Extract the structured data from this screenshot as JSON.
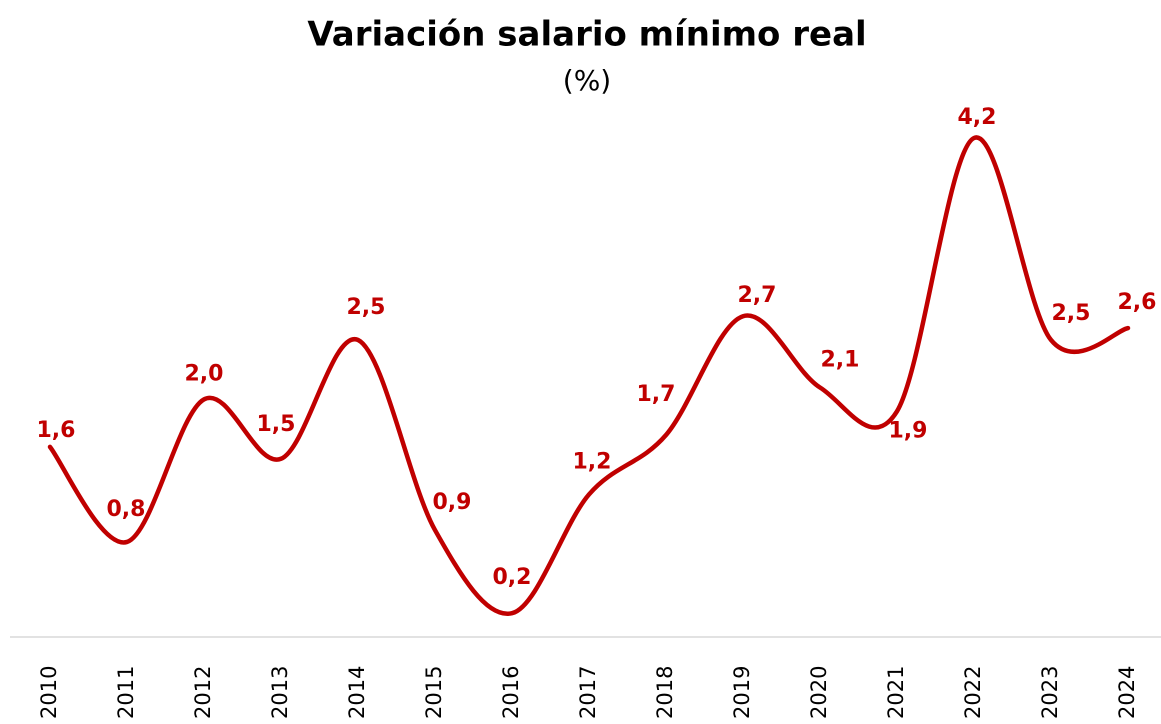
{
  "chart_data": {
    "type": "line",
    "title": "Variación salario mínimo real",
    "subtitle": "(%)",
    "categories": [
      "2010",
      "2011",
      "2012",
      "2013",
      "2014",
      "2015",
      "2016",
      "2017",
      "2018",
      "2019",
      "2020",
      "2021",
      "2022",
      "2023",
      "2024"
    ],
    "values": [
      1.6,
      0.8,
      2.0,
      1.5,
      2.5,
      0.9,
      0.2,
      1.2,
      1.7,
      2.7,
      2.1,
      1.9,
      4.2,
      2.5,
      2.6
    ],
    "value_labels": [
      "1,6",
      "0,8",
      "2,0",
      "1,5",
      "2,5",
      "0,9",
      "0,2",
      "1,2",
      "1,7",
      "2,7",
      "2,1",
      "1,9",
      "4,2",
      "2,5",
      "2,6"
    ],
    "color": "#c00000",
    "smooth": true
  }
}
